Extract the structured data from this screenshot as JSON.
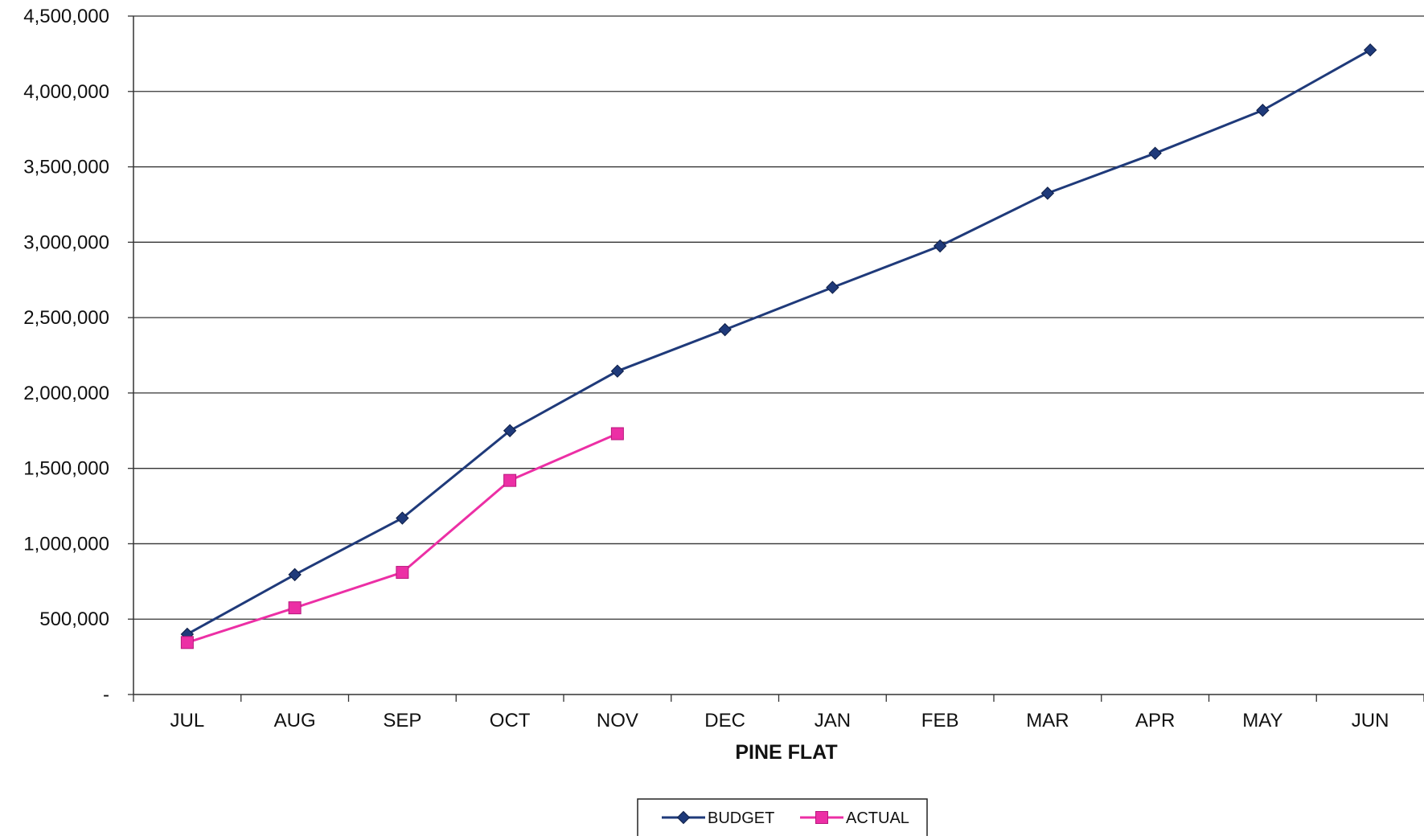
{
  "chart_data": {
    "type": "line",
    "title": "",
    "xlabel": "PINE FLAT",
    "ylabel": "",
    "categories": [
      "JUL",
      "AUG",
      "SEP",
      "OCT",
      "NOV",
      "DEC",
      "JAN",
      "FEB",
      "MAR",
      "APR",
      "MAY",
      "JUN"
    ],
    "ylim": [
      0,
      4500000
    ],
    "y_ticks": [
      {
        "value": 0,
        "label": "-"
      },
      {
        "value": 500000,
        "label": "500,000"
      },
      {
        "value": 1000000,
        "label": "1,000,000"
      },
      {
        "value": 1500000,
        "label": "1,500,000"
      },
      {
        "value": 2000000,
        "label": "2,000,000"
      },
      {
        "value": 2500000,
        "label": "2,500,000"
      },
      {
        "value": 3000000,
        "label": "3,000,000"
      },
      {
        "value": 3500000,
        "label": "3,500,000"
      },
      {
        "value": 4000000,
        "label": "4,000,000"
      },
      {
        "value": 4500000,
        "label": "4,500,000"
      }
    ],
    "grid": true,
    "legend_position": "bottom-center",
    "series": [
      {
        "name": "BUDGET",
        "color": "#1f3a7a",
        "marker": "diamond",
        "values": [
          400000,
          795000,
          1170000,
          1750000,
          2145000,
          2420000,
          2700000,
          2975000,
          3325000,
          3590000,
          3875000,
          4275000
        ]
      },
      {
        "name": "ACTUAL",
        "color": "#ec2fa5",
        "marker": "square",
        "values": [
          345000,
          575000,
          810000,
          1420000,
          1730000,
          null,
          null,
          null,
          null,
          null,
          null,
          null
        ]
      }
    ]
  }
}
